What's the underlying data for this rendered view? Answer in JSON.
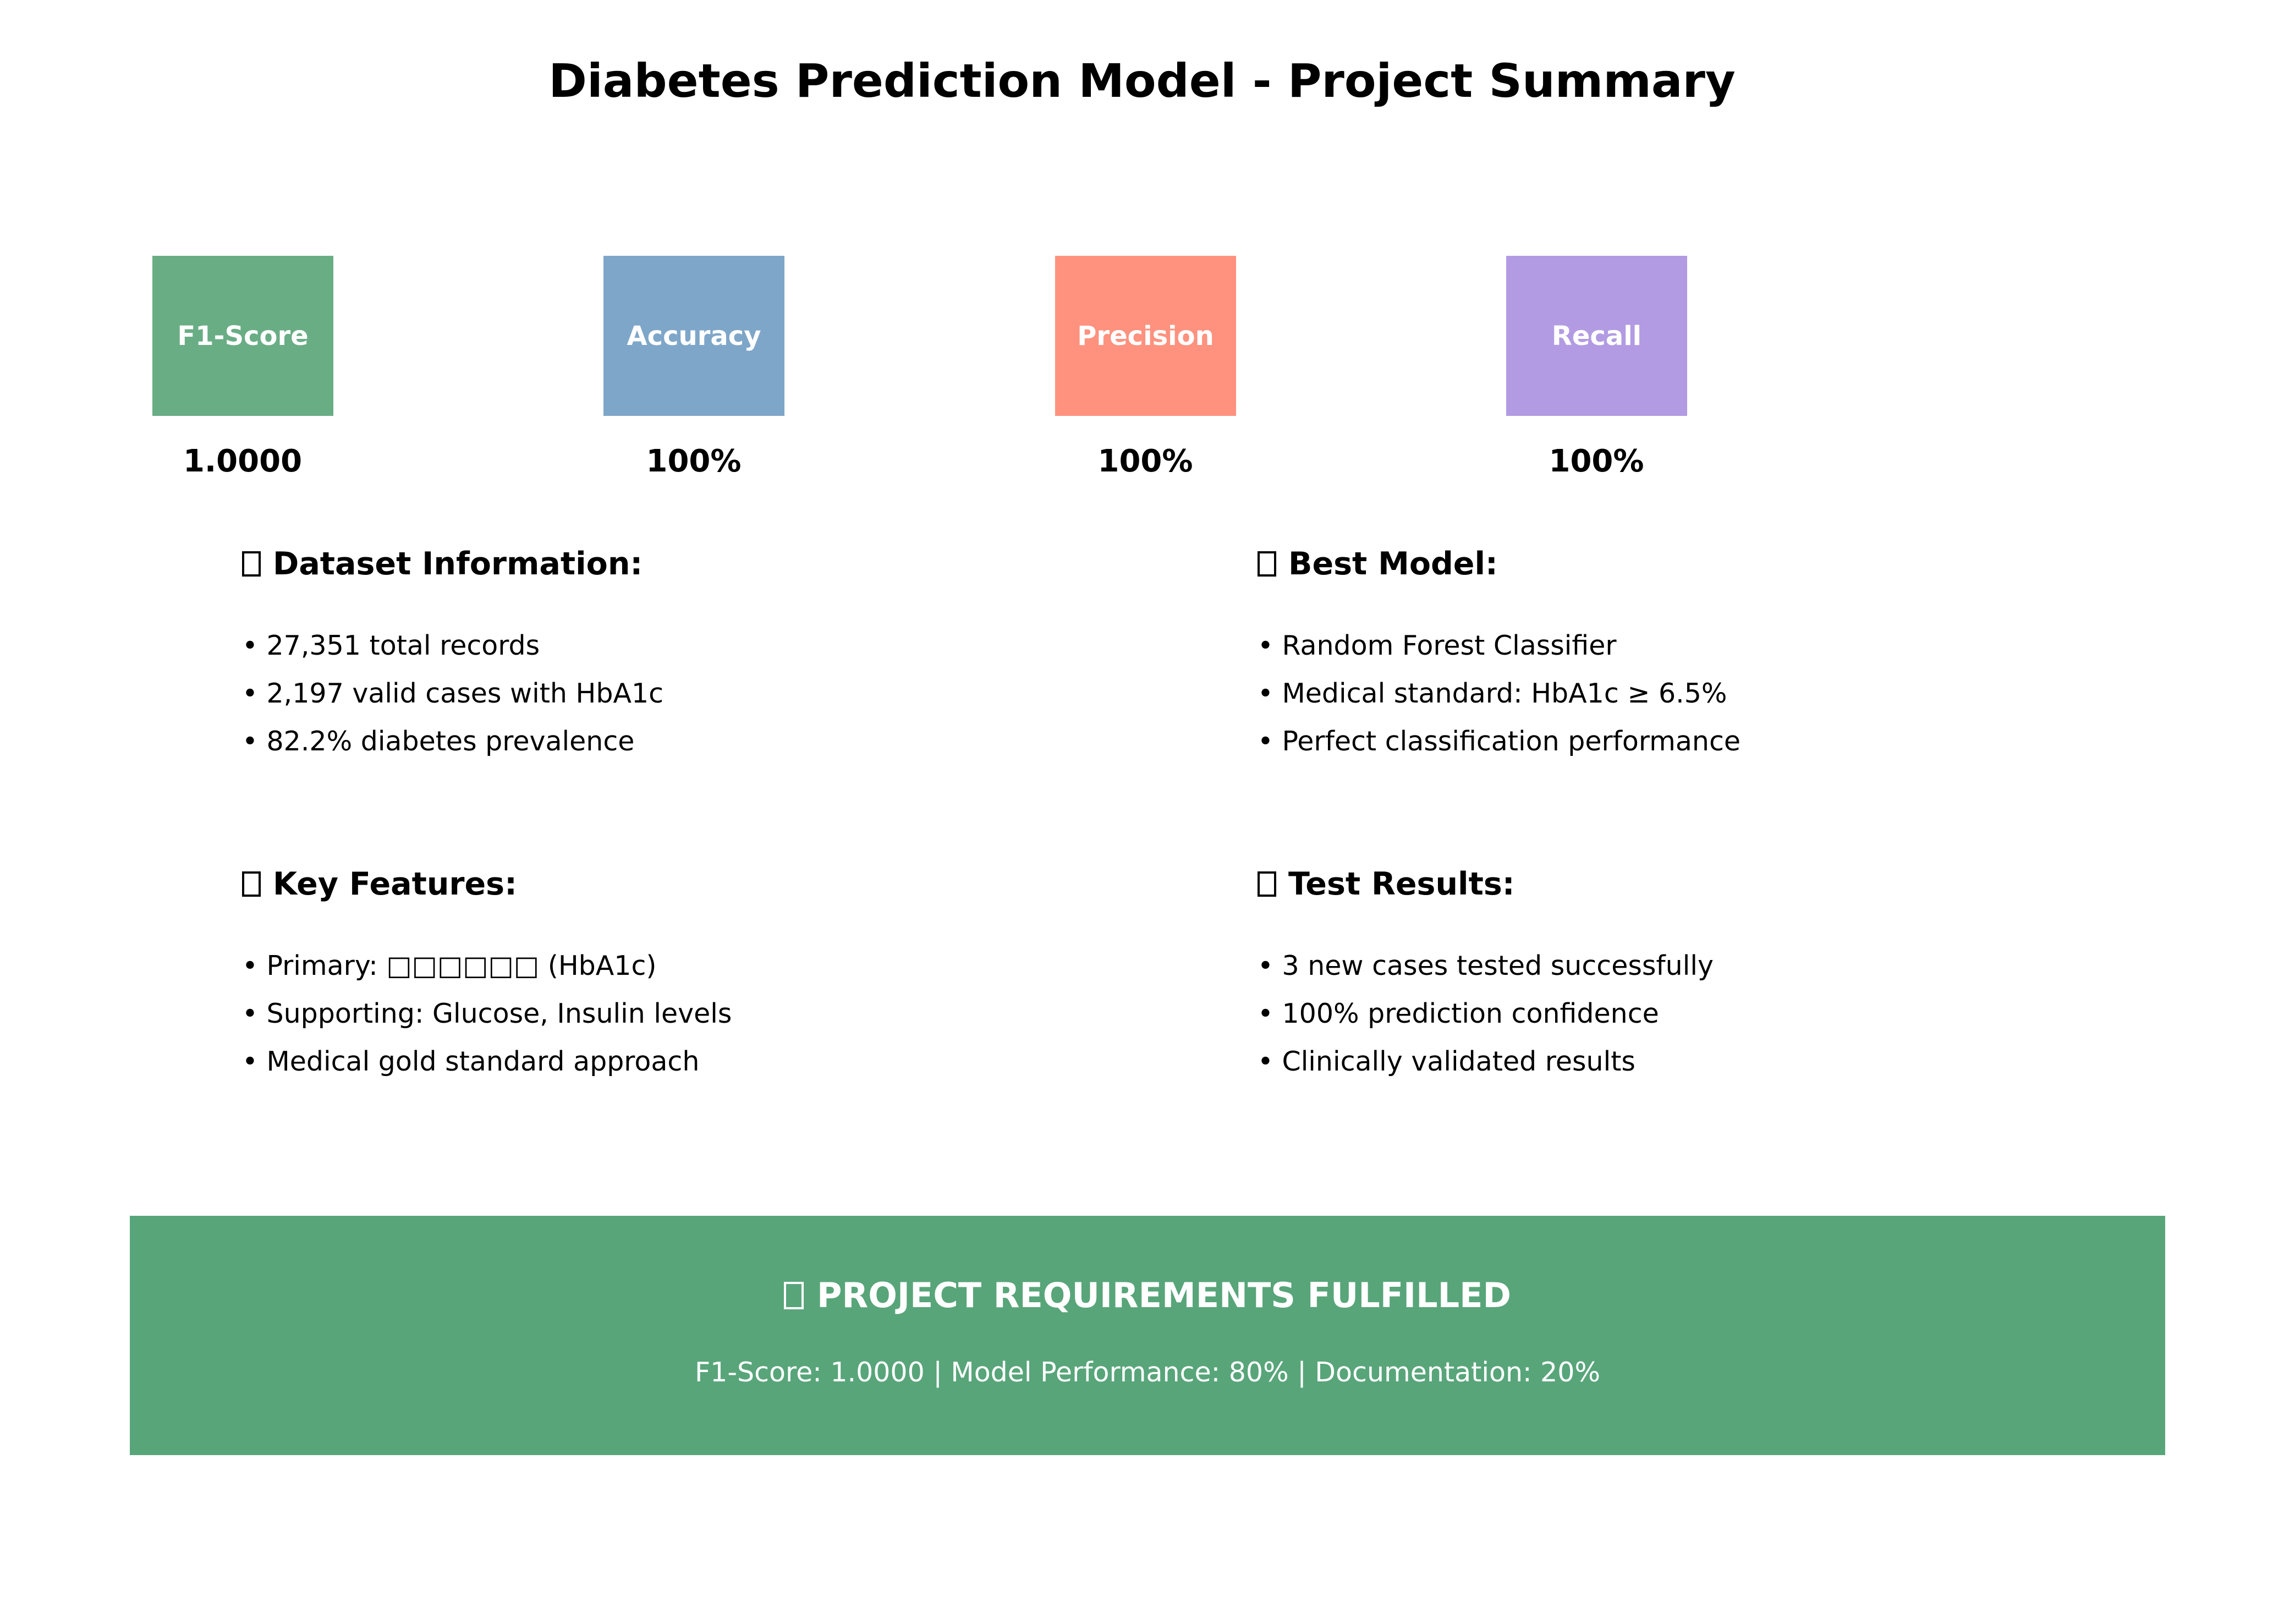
{
  "title": "Diabetes Prediction Model - Project Summary",
  "metrics": [
    {
      "label": "F1-Score",
      "value": "1.0000",
      "color": "#69ad85"
    },
    {
      "label": "Accuracy",
      "value": "100%",
      "color": "#7ea6c8"
    },
    {
      "label": "Precision",
      "value": "100%",
      "color": "#fe927f"
    },
    {
      "label": "Recall",
      "value": "100%",
      "color": "#b29be3"
    }
  ],
  "sections": {
    "dataset": {
      "icon": "square-placeholder-icon",
      "heading": "Dataset Information:",
      "items": [
        "• 27,351 total records",
        "• 2,197 valid cases with HbA1c",
        "• 82.2% diabetes prevalence"
      ]
    },
    "best_model": {
      "icon": "square-placeholder-icon",
      "heading": "Best Model:",
      "items": [
        "• Random Forest Classifier",
        "• Medical standard: HbA1c ≥ 6.5%",
        "• Perfect classification performance"
      ]
    },
    "key_features": {
      "icon": "square-placeholder-icon",
      "heading": "Key Features:",
      "items": [
        "• Primary: □□□□□□ (HbA1c)",
        "• Supporting: Glucose, Insulin levels",
        "• Medical gold standard approach"
      ]
    },
    "test_results": {
      "icon": "square-placeholder-icon",
      "heading": "Test Results:",
      "items": [
        "• 3 new cases tested successfully",
        "• 100% prediction confidence",
        "• Clinically validated results"
      ]
    }
  },
  "banner": {
    "icon": "square-placeholder-icon",
    "title": "PROJECT REQUIREMENTS FULFILLED",
    "subtitle": "F1-Score: 1.0000 | Model Performance: 80% | Documentation: 20%",
    "color": "#58a57a"
  }
}
